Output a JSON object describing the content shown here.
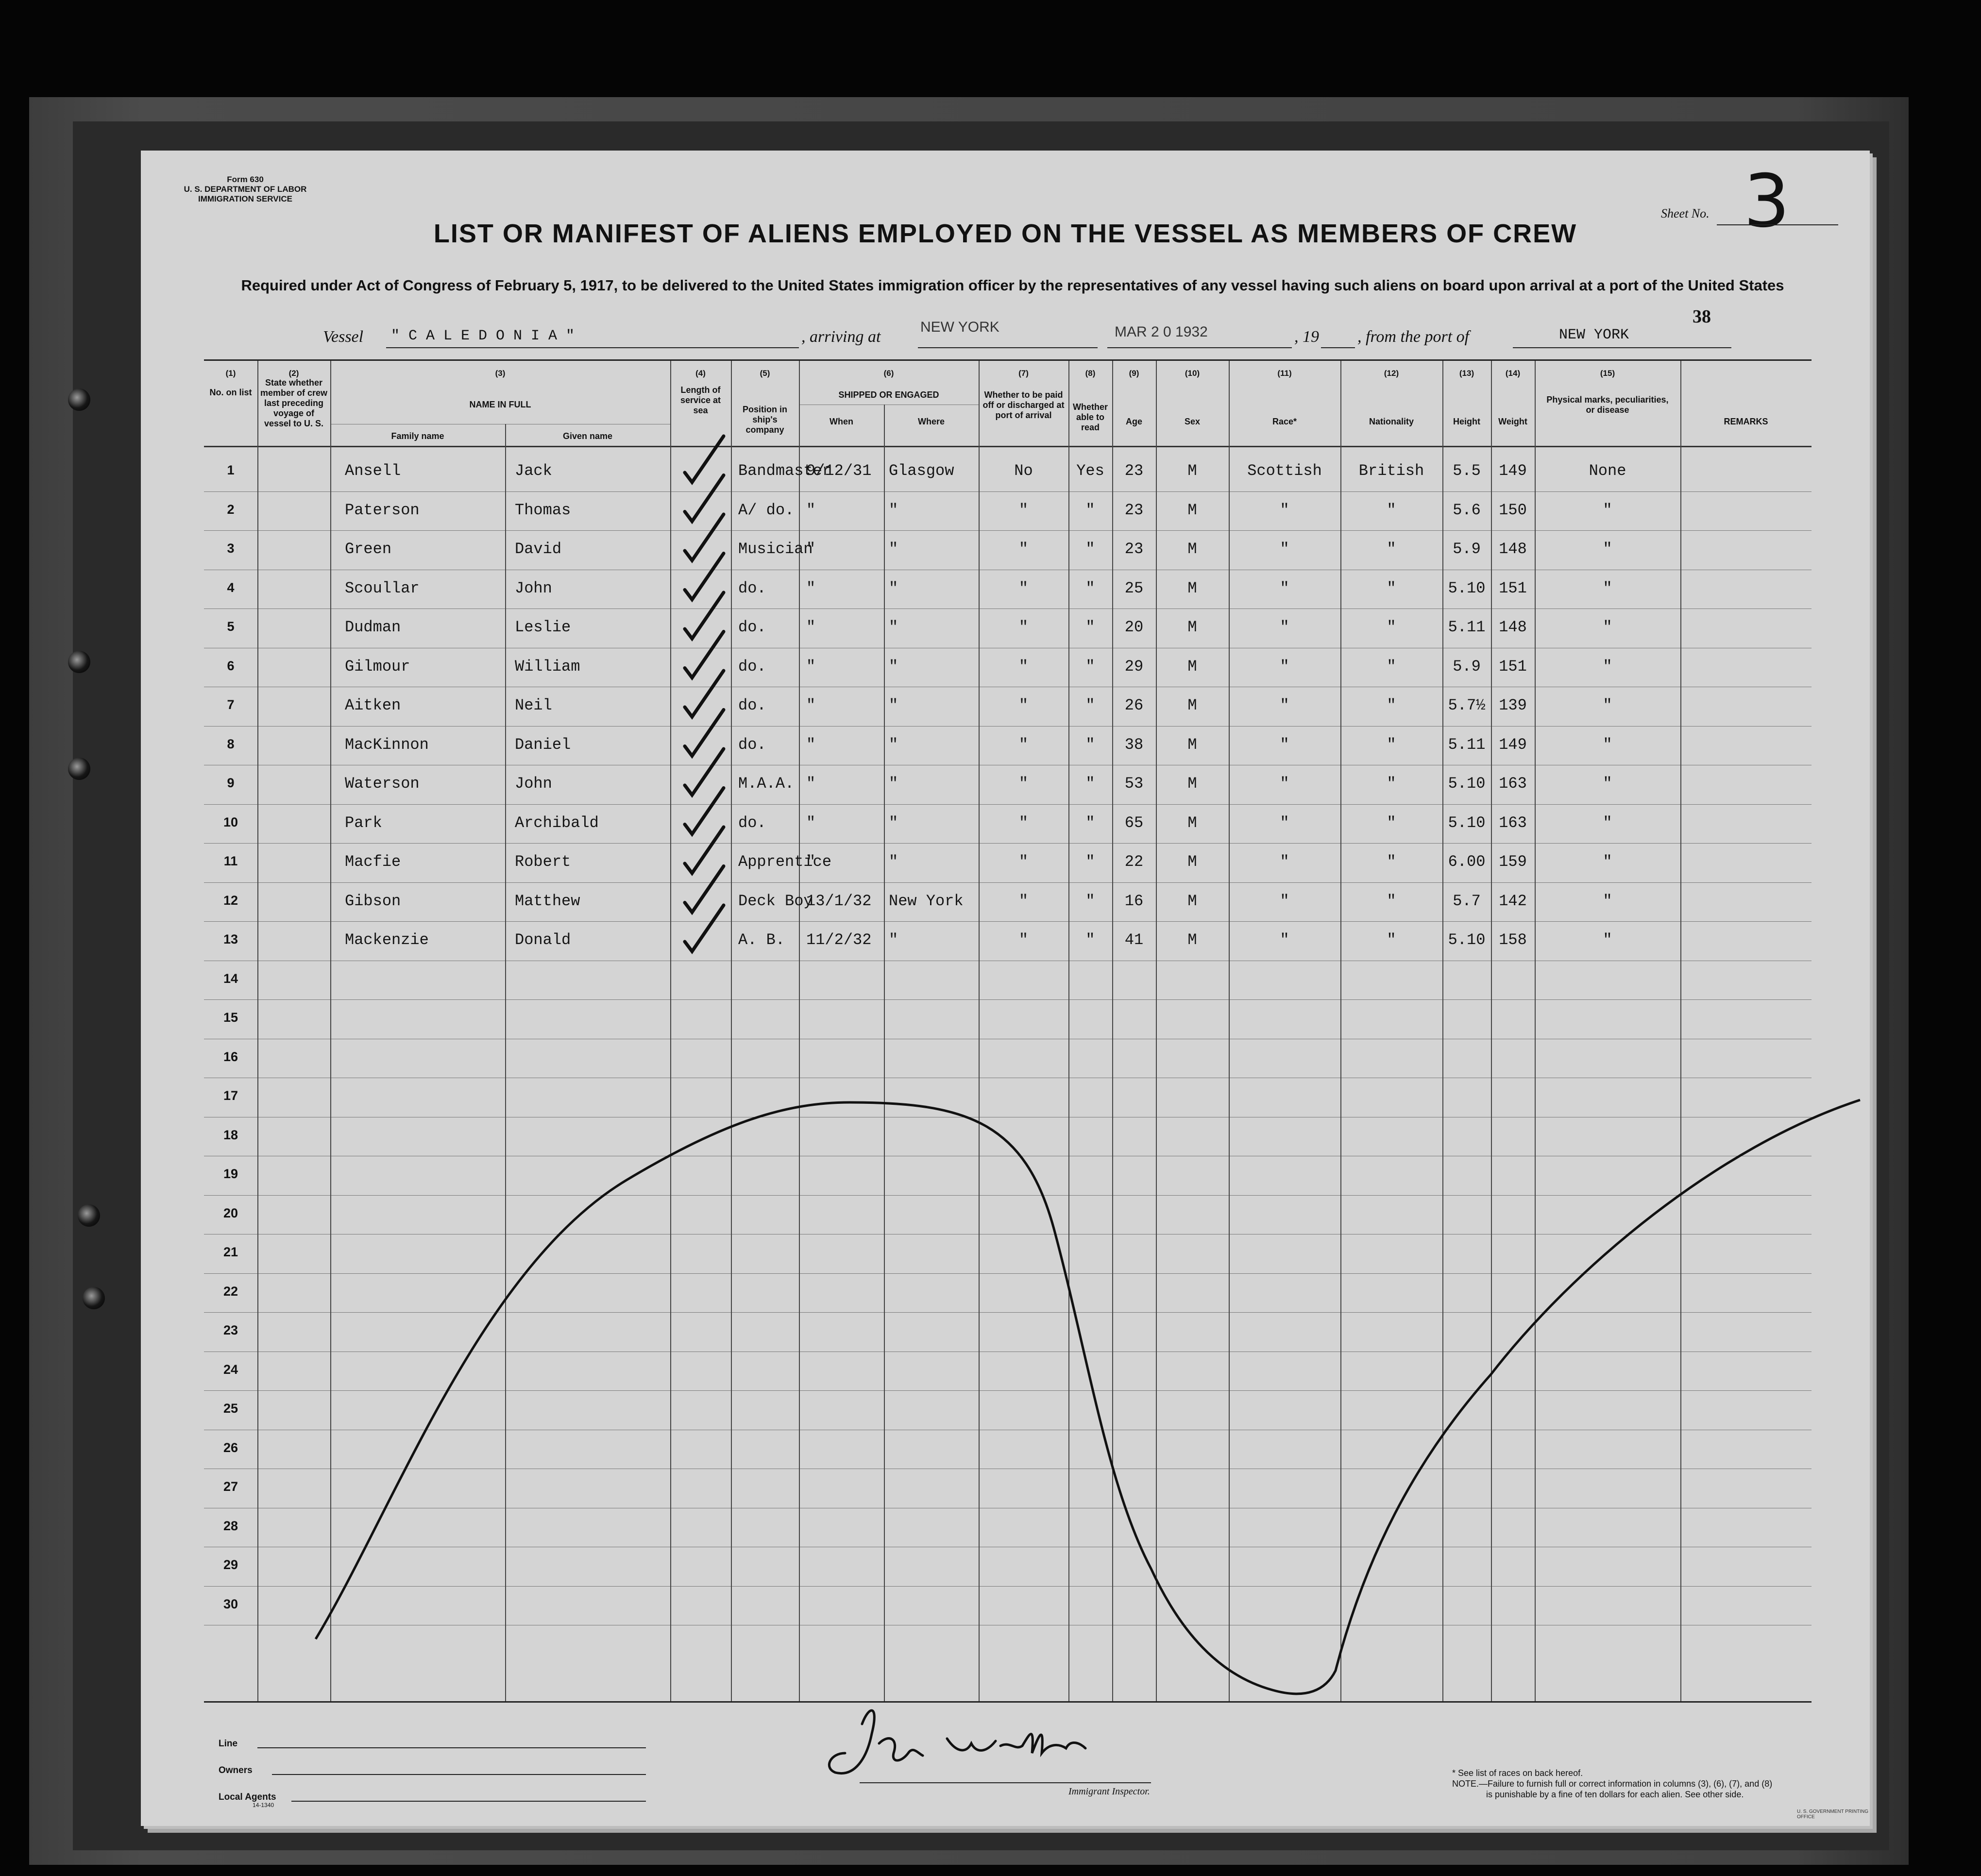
{
  "form": {
    "form_number": "Form 630",
    "department": "U. S. DEPARTMENT OF LABOR",
    "service": "IMMIGRATION SERVICE"
  },
  "title": "LIST OR MANIFEST OF ALIENS EMPLOYED ON THE VESSEL AS MEMBERS OF CREW",
  "subtitle": "Required under Act of Congress of February 5, 1917, to be delivered to the United States immigration officer by the representatives of any vessel having such aliens on board upon arrival at a port of the United States",
  "sheet": {
    "label": "Sheet No.",
    "number": "3"
  },
  "page_number": "38",
  "vessel_line": {
    "vessel_label": "Vessel",
    "vessel_name": "\" C A L E D O N I A \"",
    "arriving_label": ", arriving at",
    "arriving_port": "NEW YORK",
    "date_stamp": "MAR 2 0 1932",
    "year_label": ", 19",
    "from_label": ", from the port of",
    "from_port": "NEW YORK"
  },
  "columns": [
    {
      "num": "(1)",
      "label": "No. on list"
    },
    {
      "num": "(2)",
      "label": "State whether member of crew last preceding voyage of vessel to U. S."
    },
    {
      "num": "(3)",
      "label": "NAME IN FULL",
      "sub": [
        "Family name",
        "Given name"
      ]
    },
    {
      "num": "(4)",
      "label": "Length of service at sea"
    },
    {
      "num": "(5)",
      "label": "Position in ship's company"
    },
    {
      "num": "(6)",
      "label": "SHIPPED OR ENGAGED",
      "sub": [
        "When",
        "Where"
      ]
    },
    {
      "num": "(7)",
      "label": "Whether to be paid off or discharged at port of arrival"
    },
    {
      "num": "(8)",
      "label": "Whether able to read"
    },
    {
      "num": "(9)",
      "label": "Age"
    },
    {
      "num": "(10)",
      "label": "Sex"
    },
    {
      "num": "(11)",
      "label": "Race*"
    },
    {
      "num": "(12)",
      "label": "Nationality"
    },
    {
      "num": "(13)",
      "label": "Height"
    },
    {
      "num": "(14)",
      "label": "Weight"
    },
    {
      "num": "(15)",
      "label": "Physical marks, peculiarities, or disease"
    },
    {
      "num": "",
      "label": "REMARKS"
    }
  ],
  "row_numbers": [
    "1",
    "2",
    "3",
    "4",
    "5",
    "6",
    "7",
    "8",
    "9",
    "10",
    "11",
    "12",
    "13",
    "14",
    "15",
    "16",
    "17",
    "18",
    "19",
    "20",
    "21",
    "22",
    "23",
    "24",
    "25",
    "26",
    "27",
    "28",
    "29",
    "30"
  ],
  "rows": [
    {
      "family": "Ansell",
      "given": "Jack",
      "position": "Bandmaster",
      "when": "9/12/31",
      "where": "Glasgow",
      "paid_off": "No",
      "read": "Yes",
      "age": "23",
      "sex": "M",
      "race": "Scottish",
      "nationality": "British",
      "height": "5.5",
      "weight": "149",
      "marks": "None"
    },
    {
      "family": "Paterson",
      "given": "Thomas",
      "position": "A/  do.",
      "when": "\"",
      "where": "\"",
      "paid_off": "\"",
      "read": "\"",
      "age": "23",
      "sex": "M",
      "race": "\"",
      "nationality": "\"",
      "height": "5.6",
      "weight": "150",
      "marks": "\""
    },
    {
      "family": "Green",
      "given": "David",
      "position": "Musician",
      "when": "\"",
      "where": "\"",
      "paid_off": "\"",
      "read": "\"",
      "age": "23",
      "sex": "M",
      "race": "\"",
      "nationality": "\"",
      "height": "5.9",
      "weight": "148",
      "marks": "\""
    },
    {
      "family": "Scoullar",
      "given": "John",
      "position": "do.",
      "when": "\"",
      "where": "\"",
      "paid_off": "\"",
      "read": "\"",
      "age": "25",
      "sex": "M",
      "race": "\"",
      "nationality": "\"",
      "height": "5.10",
      "weight": "151",
      "marks": "\""
    },
    {
      "family": "Dudman",
      "given": "Leslie",
      "position": "do.",
      "when": "\"",
      "where": "\"",
      "paid_off": "\"",
      "read": "\"",
      "age": "20",
      "sex": "M",
      "race": "\"",
      "nationality": "\"",
      "height": "5.11",
      "weight": "148",
      "marks": "\""
    },
    {
      "family": "Gilmour",
      "given": "William",
      "position": "do.",
      "when": "\"",
      "where": "\"",
      "paid_off": "\"",
      "read": "\"",
      "age": "29",
      "sex": "M",
      "race": "\"",
      "nationality": "\"",
      "height": "5.9",
      "weight": "151",
      "marks": "\""
    },
    {
      "family": "Aitken",
      "given": "Neil",
      "position": "do.",
      "when": "\"",
      "where": "\"",
      "paid_off": "\"",
      "read": "\"",
      "age": "26",
      "sex": "M",
      "race": "\"",
      "nationality": "\"",
      "height": "5.7½",
      "weight": "139",
      "marks": "\""
    },
    {
      "family": "MacKinnon",
      "given": "Daniel",
      "position": "do.",
      "when": "\"",
      "where": "\"",
      "paid_off": "\"",
      "read": "\"",
      "age": "38",
      "sex": "M",
      "race": "\"",
      "nationality": "\"",
      "height": "5.11",
      "weight": "149",
      "marks": "\""
    },
    {
      "family": "Waterson",
      "given": "John",
      "position": "M.A.A.",
      "when": "\"",
      "where": "\"",
      "paid_off": "\"",
      "read": "\"",
      "age": "53",
      "sex": "M",
      "race": "\"",
      "nationality": "\"",
      "height": "5.10",
      "weight": "163",
      "marks": "\""
    },
    {
      "family": "Park",
      "given": "Archibald",
      "position": "do.",
      "when": "\"",
      "where": "\"",
      "paid_off": "\"",
      "read": "\"",
      "age": "65",
      "sex": "M",
      "race": "\"",
      "nationality": "\"",
      "height": "5.10",
      "weight": "163",
      "marks": "\""
    },
    {
      "family": "Macfie",
      "given": "Robert",
      "position": "Apprentice",
      "when": "\"",
      "where": "\"",
      "paid_off": "\"",
      "read": "\"",
      "age": "22",
      "sex": "M",
      "race": "\"",
      "nationality": "\"",
      "height": "6.00",
      "weight": "159",
      "marks": "\""
    },
    {
      "family": "Gibson",
      "given": "Matthew",
      "position": "Deck Boy",
      "when": "13/1/32",
      "where": "New York",
      "paid_off": "\"",
      "read": "\"",
      "age": "16",
      "sex": "M",
      "race": "\"",
      "nationality": "\"",
      "height": "5.7",
      "weight": "142",
      "marks": "\""
    },
    {
      "family": "Mackenzie",
      "given": "Donald",
      "position": "A. B.",
      "when": "11/2/32",
      "where": "\"",
      "paid_off": "\"",
      "read": "\"",
      "age": "41",
      "sex": "M",
      "race": "\"",
      "nationality": "\"",
      "height": "5.10",
      "weight": "158",
      "marks": "\""
    }
  ],
  "footer": {
    "line_label": "Line",
    "owners_label": "Owners",
    "agents_label": "Local Agents",
    "form_code": "14-1340",
    "signature": "John Wallace",
    "inspector_label": "Immigrant Inspector.",
    "note_races": "* See list of races on back hereof.",
    "note_1": "NOTE.—Failure to furnish full or correct information in columns (3), (6), (7), and (8)",
    "note_2": "is punishable by a fine of ten dollars for each alien.  See other side.",
    "printer": "U. S. GOVERNMENT PRINTING OFFICE"
  }
}
